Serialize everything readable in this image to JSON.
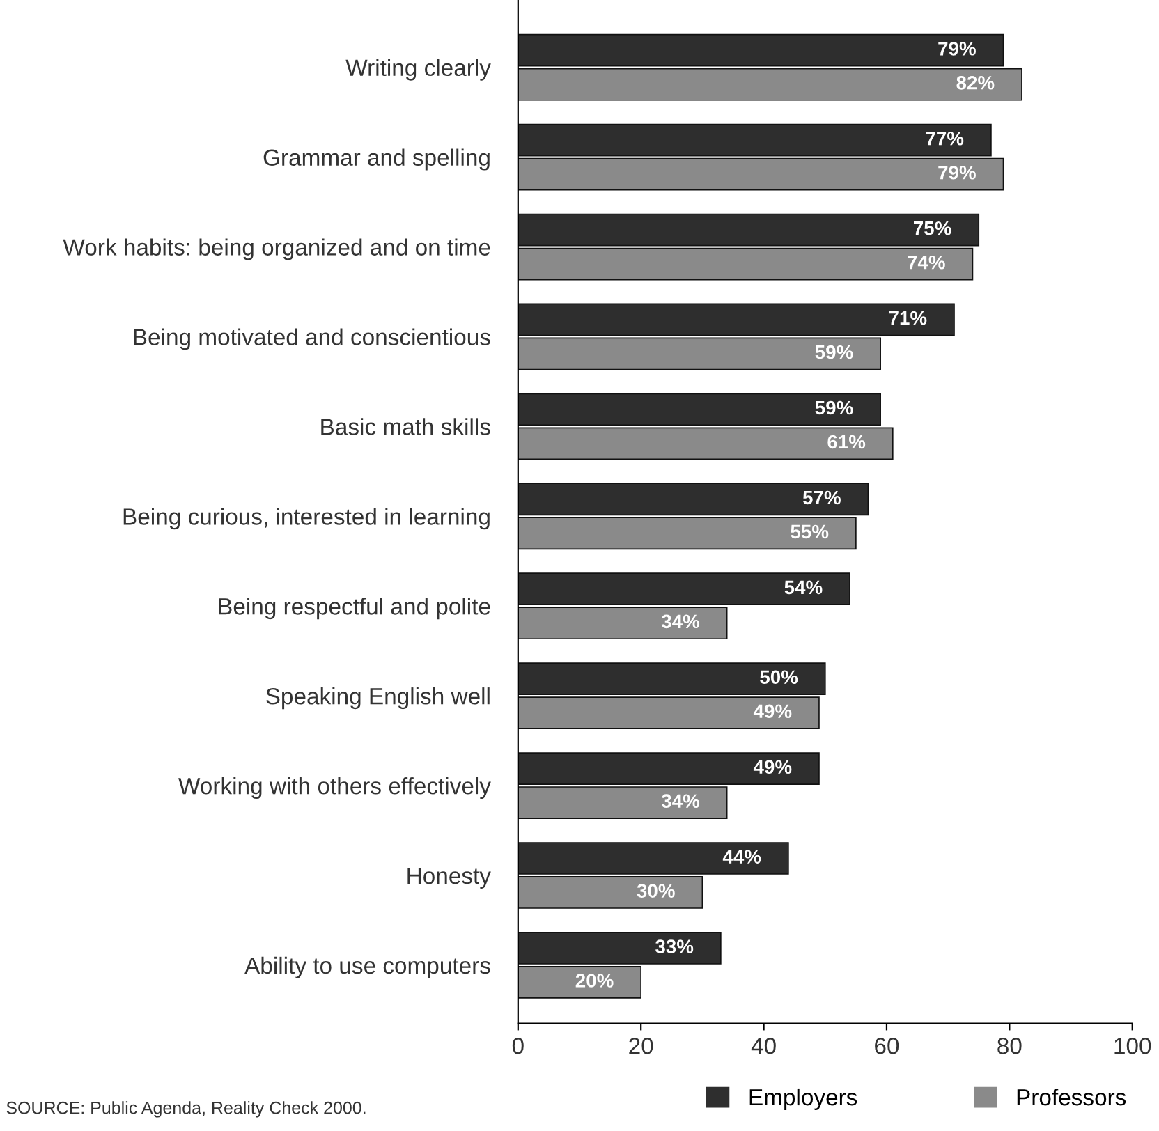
{
  "chart_data": {
    "type": "bar",
    "orientation": "horizontal",
    "categories": [
      "Writing clearly",
      "Grammar and spelling",
      "Work habits: being organized and on time",
      "Being motivated and conscientious",
      "Basic math skills",
      "Being curious, interested in learning",
      "Being respectful and polite",
      "Speaking English well",
      "Working with others effectively",
      "Honesty",
      "Ability to use computers"
    ],
    "series": [
      {
        "name": "Employers",
        "color": "#2e2e2e",
        "values": [
          79,
          77,
          75,
          71,
          59,
          57,
          54,
          50,
          49,
          44,
          33
        ],
        "value_labels": [
          "79%",
          "77%",
          "75%",
          "71%",
          "59%",
          "57%",
          "54%",
          "50%",
          "49%",
          "44%",
          "33%"
        ]
      },
      {
        "name": "Professors",
        "color": "#8a8a8a",
        "values": [
          82,
          79,
          74,
          59,
          61,
          55,
          34,
          49,
          34,
          30,
          20
        ],
        "value_labels": [
          "82%",
          "79%",
          "74%",
          "59%",
          "61%",
          "55%",
          "34%",
          "49%",
          "34%",
          "30%",
          "20%"
        ]
      }
    ],
    "xlim": [
      0,
      100
    ],
    "xticks": [
      0,
      20,
      40,
      60,
      80,
      100
    ],
    "grid": false,
    "legend": "bottom right",
    "annotations": [
      "SOURCE: Public Agenda, Reality Check 2000."
    ]
  }
}
